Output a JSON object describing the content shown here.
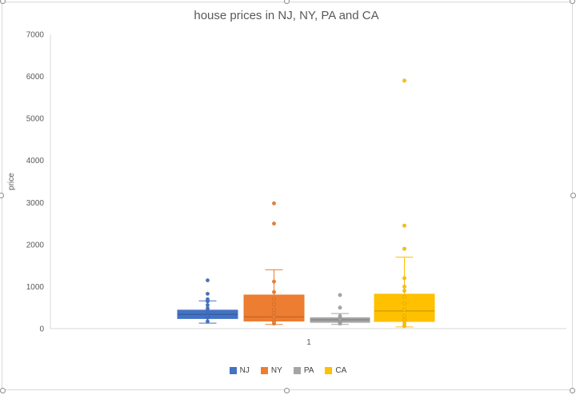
{
  "chart_data": {
    "type": "box",
    "title": "house prices in NJ, NY, PA and CA",
    "xlabel": "",
    "ylabel": "price",
    "categories": [
      "1"
    ],
    "ylim": [
      0,
      7000
    ],
    "yticks": [
      0,
      1000,
      2000,
      3000,
      4000,
      5000,
      6000,
      7000
    ],
    "grid": false,
    "legend_position": "bottom",
    "series": [
      {
        "name": "NJ",
        "color": "#4472C4",
        "whisker_low": 130,
        "q1": 240,
        "median": 340,
        "q3": 440,
        "whisker_high": 660,
        "points": [
          170,
          260,
          300,
          420,
          480,
          560,
          650,
          700,
          830,
          1150
        ]
      },
      {
        "name": "NY",
        "color": "#ED7D31",
        "whisker_low": 100,
        "q1": 180,
        "median": 280,
        "q3": 800,
        "whisker_high": 1400,
        "points": [
          120,
          160,
          280,
          380,
          450,
          580,
          700,
          870,
          1120,
          2500,
          2980
        ]
      },
      {
        "name": "PA",
        "color": "#A5A5A5",
        "whisker_low": 100,
        "q1": 150,
        "median": 210,
        "q3": 260,
        "whisker_high": 360,
        "points": [
          120,
          180,
          220,
          300,
          500,
          800
        ]
      },
      {
        "name": "CA",
        "color": "#FFC000",
        "whisker_low": 40,
        "q1": 170,
        "median": 420,
        "q3": 820,
        "whisker_high": 1700,
        "points": [
          60,
          120,
          200,
          300,
          450,
          600,
          750,
          900,
          1000,
          1200,
          1900,
          2450,
          5900
        ]
      }
    ]
  }
}
